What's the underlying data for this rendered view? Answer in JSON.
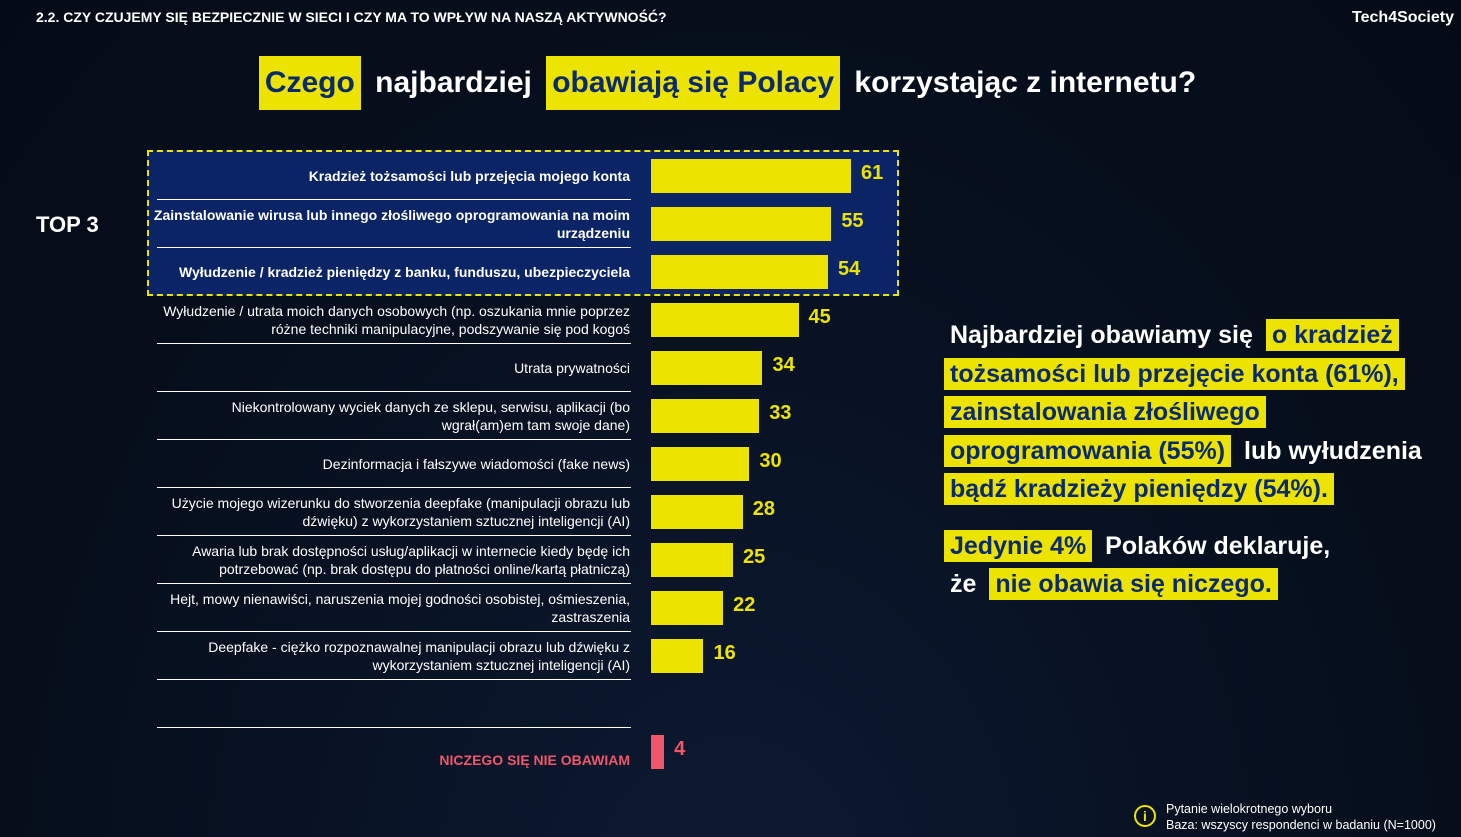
{
  "header": {
    "section": "2.2.   CZY CZUJEMY SIĘ BEZPIECZNIE W SIECI I CZY MA TO WPŁYW NA NASZĄ AKTYWNOŚĆ?",
    "brand": "Tech4Society"
  },
  "title": {
    "p1": "Czego",
    "p2": "najbardziej",
    "p3": "obawiają się Polacy",
    "p4": "korzystając z internetu?"
  },
  "top3_label": "TOP 3",
  "chart_data": {
    "type": "bar",
    "orientation": "horizontal",
    "xlim": [
      0,
      61
    ],
    "categories": [
      "Kradzież tożsamości lub przejęcia mojego konta",
      "Zainstalowanie wirusa lub innego złośliwego oprogramowania na moim urządzeniu",
      "Wyłudzenie / kradzież pieniędzy z banku, funduszu, ubezpieczyciela",
      "Wyłudzenie / utrata moich danych osobowych (np. oszukania mnie poprzez różne techniki manipulacyjne, podszywanie się pod kogoś",
      "Utrata prywatności",
      "Niekontrolowany wyciek danych ze sklepu, serwisu, aplikacji (bo wgrał(am)em tam swoje dane)",
      "Dezinformacja i fałszywe wiadomości (fake news)",
      "Użycie mojego wizerunku do stworzenia deepfake (manipulacji obrazu lub dźwięku) z wykorzystaniem sztucznej inteligencji (AI)",
      "Awaria lub brak dostępności usług/aplikacji w internecie kiedy będę ich potrzebować (np. brak dostępu do płatności online/kartą płatniczą)",
      "Hejt, mowy nienawiści, naruszenia mojej godności osobistej, ośmieszenia, zastraszenia",
      "Deepfake - ciężko rozpoznawalnej manipulacji obrazu lub dźwięku z wykorzystaniem sztucznej inteligencji (AI)"
    ],
    "values": [
      61,
      55,
      54,
      45,
      34,
      33,
      30,
      28,
      25,
      22,
      16
    ],
    "extra": {
      "label": "NICZEGO SIĘ NIE OBAWIAM",
      "value": 4,
      "color": "#f0576a"
    },
    "bar_color": "#ece400",
    "highlight_color": "#0b2466"
  },
  "side": {
    "a": "Najbardziej obawiamy się",
    "b": "o kradzież tożsamości lub przejęcie konta (61%), zainstalowania złośliwego oprogramowania (55%)",
    "c": "lub  wyłudzenia",
    "d": "bądź kradzieży pieniędzy (54%).",
    "e": "Jedynie 4%",
    "f": "Polaków deklaruje,",
    "g": "że",
    "h": "nie obawia się niczego."
  },
  "note": {
    "line1": "Pytanie wielokrotnego wyboru",
    "line2": "Baza: wszyscy respondenci w badaniu (N=1000)"
  }
}
